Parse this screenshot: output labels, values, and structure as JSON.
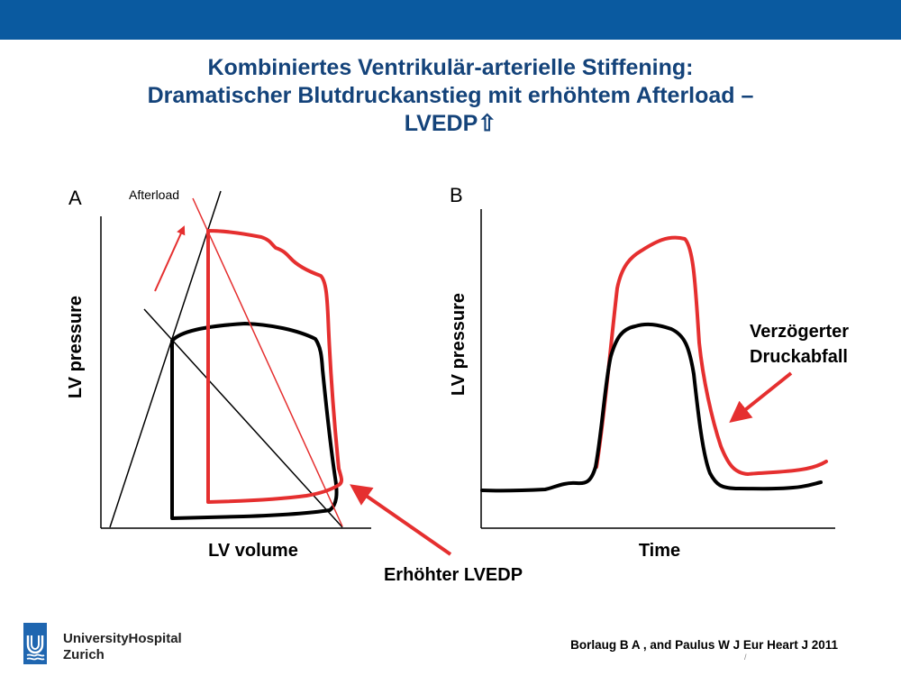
{
  "colors": {
    "brand": "#0a5aa0",
    "title": "#14437a",
    "red": "#e52f2f",
    "black": "#000000"
  },
  "slide": {
    "title_lines": [
      "Kombiniertes Ventrikulär-arterielle Stiffening:",
      "Dramatischer Blutdruckanstieg mit erhöhtem Afterload –",
      "LVEDP⇧"
    ]
  },
  "panel_a": {
    "letter": "A",
    "afterload_label": "Afterload",
    "ylabel": "LV pressure",
    "xlabel": "LV volume",
    "annotation": "Erhöhter LVEDP"
  },
  "panel_b": {
    "letter": "B",
    "ylabel": "LV pressure",
    "xlabel": "Time",
    "annotation_lines": [
      "Verzögerter",
      "Druckabfall"
    ]
  },
  "footer": {
    "logo_icon": "university-hospital-logo-icon",
    "org_line1": "UniversityHospital",
    "org_line2": "Zurich",
    "citation": "Borlaug B A , and Paulus W J Eur Heart J 2011",
    "slide_mark": "/"
  }
}
